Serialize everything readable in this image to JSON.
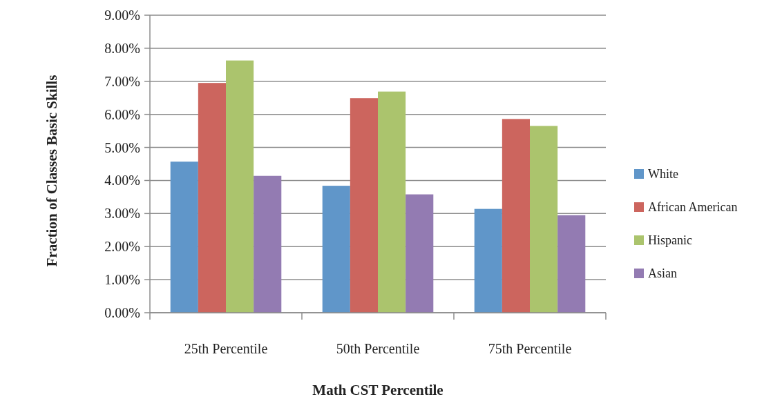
{
  "chart_data": {
    "type": "bar",
    "xlabel": "Math CST Percentile",
    "ylabel": "Fraction of  Classes Basic Skills",
    "categories": [
      "25th Percentile",
      "50th Percentile",
      "75th Percentile"
    ],
    "series": [
      {
        "name": "White",
        "color": "#6096c9",
        "values": [
          4.57,
          3.84,
          3.14
        ]
      },
      {
        "name": "African American",
        "color": "#cc655e",
        "values": [
          6.95,
          6.49,
          5.86
        ]
      },
      {
        "name": "Hispanic",
        "color": "#abc46d",
        "values": [
          7.63,
          6.69,
          5.65
        ]
      },
      {
        "name": "Asian",
        "color": "#937bb2",
        "values": [
          4.14,
          3.58,
          2.95
        ]
      }
    ],
    "ylim": [
      0,
      9
    ],
    "yticks": [
      {
        "value": 0,
        "label": "0.00%"
      },
      {
        "value": 1,
        "label": "1.00%"
      },
      {
        "value": 2,
        "label": "2.00%"
      },
      {
        "value": 3,
        "label": "3.00%"
      },
      {
        "value": 4,
        "label": "4.00%"
      },
      {
        "value": 5,
        "label": "5.00%"
      },
      {
        "value": 6,
        "label": "6.00%"
      },
      {
        "value": 7,
        "label": "7.00%"
      },
      {
        "value": 8,
        "label": "8.00%"
      },
      {
        "value": 9,
        "label": "9.00%"
      }
    ],
    "grid": "y",
    "legend": "right"
  }
}
